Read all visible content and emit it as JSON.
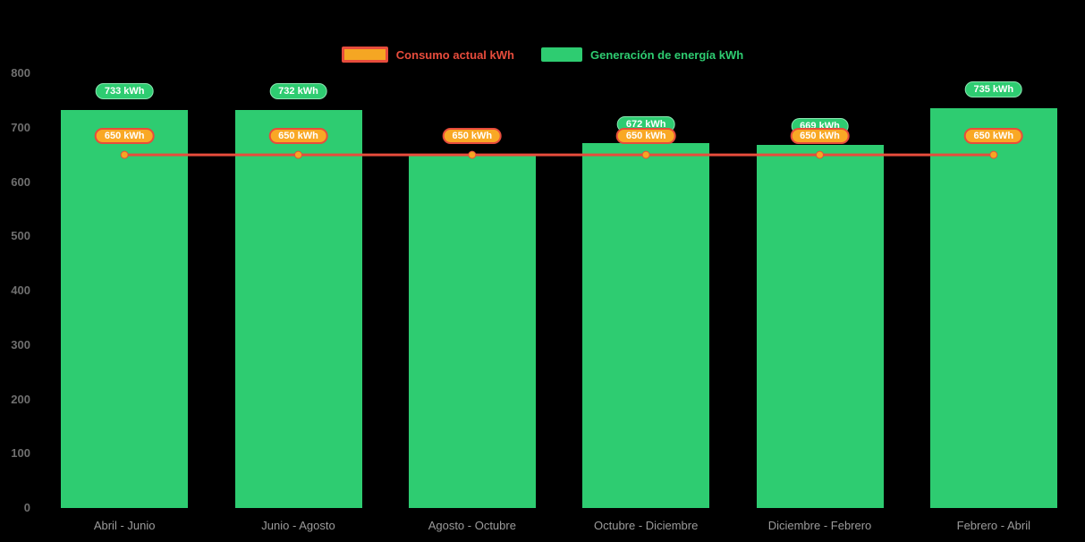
{
  "chart_data": {
    "type": "bar",
    "subtype": "bar-with-line-overlay",
    "title": "",
    "xlabel": "",
    "ylabel": "",
    "categories": [
      "Abril - Junio",
      "Junio - Agosto",
      "Agosto - Octubre",
      "Octubre - Diciembre",
      "Diciembre - Febrero",
      "Febrero - Abril"
    ],
    "series": [
      {
        "name": "Generación de energía kWh",
        "type": "bar",
        "color": "#2ecc71",
        "values": [
          733,
          732,
          648,
          672,
          669,
          735
        ],
        "labels": [
          "733 kWh",
          "732 kWh",
          null,
          "672 kWh",
          "669 kWh",
          "735 kWh"
        ]
      },
      {
        "name": "Consumo actual kWh",
        "type": "line",
        "color": "#e74c3c",
        "point_color": "#f5a623",
        "values": [
          650,
          650,
          650,
          650,
          650,
          650
        ],
        "labels": [
          "650 kWh",
          "650 kWh",
          "650 kWh",
          "650 kWh",
          "650 kWh",
          "650 kWh"
        ]
      }
    ],
    "ylim": [
      0,
      800
    ],
    "yticks": [
      0,
      100,
      200,
      300,
      400,
      500,
      600,
      700,
      800
    ],
    "grid": false,
    "legend_position": "top-center",
    "background": "#000000",
    "accent_colors": {
      "bar_green": "#2ecc71",
      "line_red": "#e74c3c",
      "point_orange": "#f5a623",
      "y_tick_text": "#6f6f6f",
      "x_label_text": "#9b9b9b"
    }
  }
}
